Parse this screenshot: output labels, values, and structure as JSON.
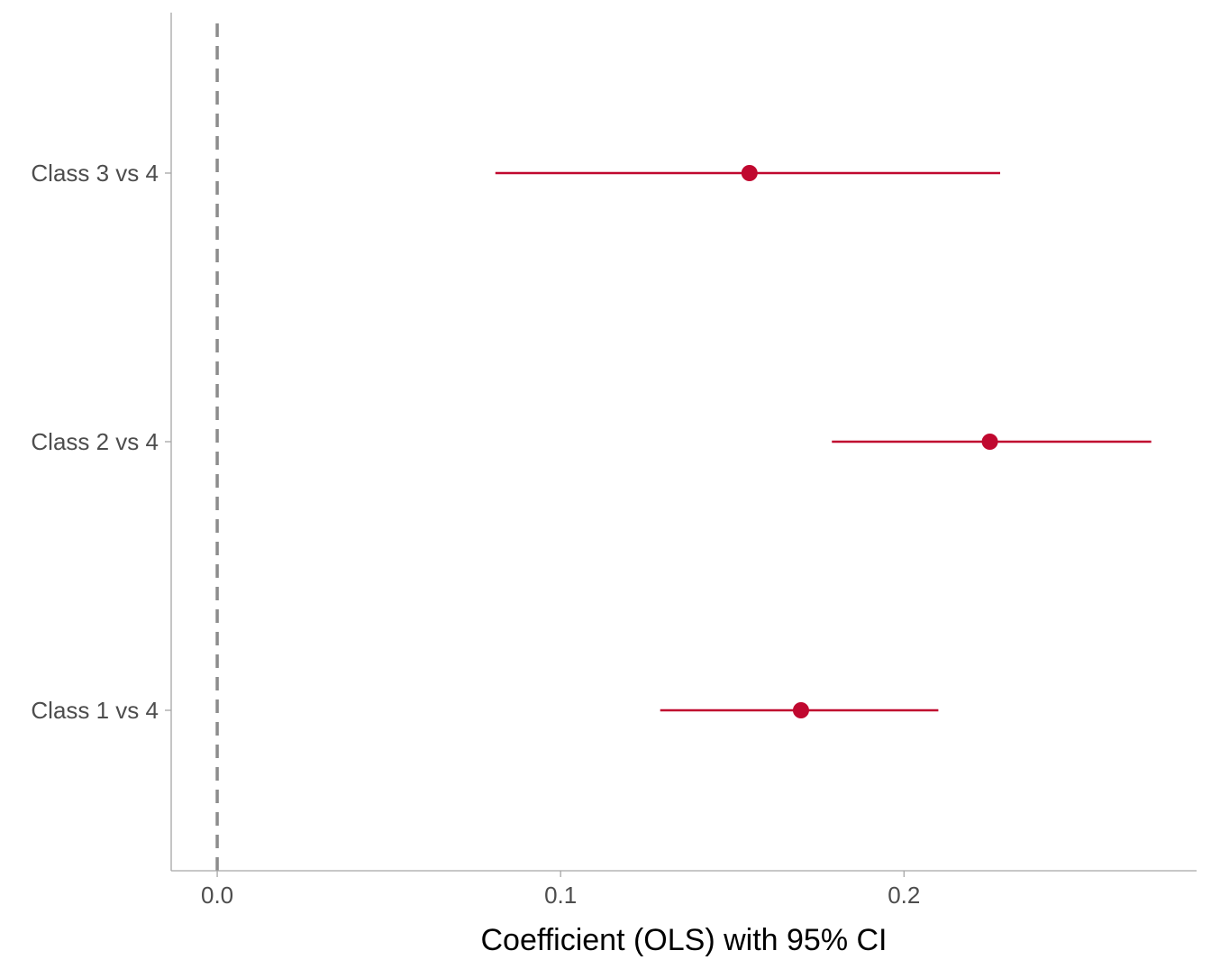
{
  "chart_data": {
    "type": "scatter",
    "subtype": "coefficient-plot",
    "title": "",
    "xlabel": "Coefficient (OLS) with 95% CI",
    "ylabel": "",
    "xlim": [
      -0.0134,
      0.2852
    ],
    "x_ticks": [
      0.0,
      0.1,
      0.2
    ],
    "x_tick_labels": [
      "0.0",
      "0.1",
      "0.2"
    ],
    "categories": [
      "Class 1 vs 4",
      "Class 2 vs 4",
      "Class 3 vs 4"
    ],
    "series": [
      {
        "estimate": [
          0.17,
          0.225,
          0.155
        ],
        "ci_low": [
          0.129,
          0.179,
          0.081
        ],
        "ci_high": [
          0.21,
          0.272,
          0.228
        ]
      }
    ],
    "reference_line": {
      "x": 0,
      "style": "dashed",
      "color": "#8c8c8c"
    },
    "grid": false,
    "legend": "none",
    "colors": {
      "point": "#c0082f",
      "axis": "#a6a6a6",
      "text": "#4d4d4d"
    }
  }
}
